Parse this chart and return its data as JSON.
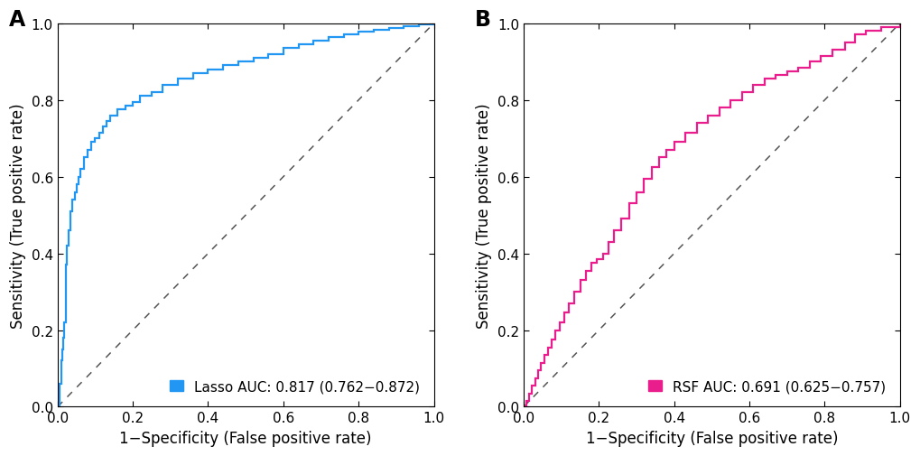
{
  "panel_A": {
    "label": "A",
    "color": "#2196F3",
    "legend_label": "Lasso AUC: 0.817 (0.762−0.872)"
  },
  "panel_B": {
    "label": "B",
    "color": "#E91E8C",
    "legend_label": "RSF AUC: 0.691 (0.625−0.757)"
  },
  "xlabel": "1−Specificity (False positive rate)",
  "ylabel": "Sensitivity (True positive rate)",
  "xlim": [
    0.0,
    1.0
  ],
  "ylim": [
    0.0,
    1.0
  ],
  "xticks": [
    0.0,
    0.2,
    0.4,
    0.6,
    0.8,
    1.0
  ],
  "yticks": [
    0.0,
    0.2,
    0.4,
    0.6,
    0.8,
    1.0
  ],
  "background_color": "#FFFFFF",
  "diagonal_color": "#555555",
  "diagonal_style": "--",
  "linewidth": 1.6,
  "label_fontsize": 12,
  "tick_fontsize": 11,
  "legend_fontsize": 11,
  "panel_label_fontsize": 17
}
